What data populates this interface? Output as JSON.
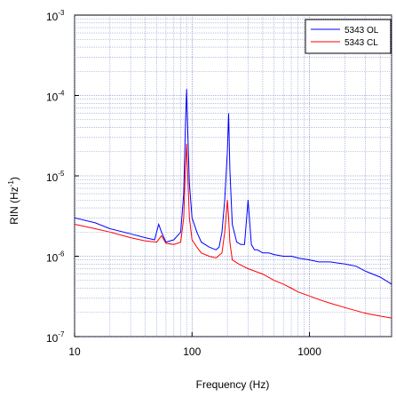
{
  "chart_data": {
    "type": "line",
    "xlabel": "Frequency (Hz)",
    "ylabel_base": "RIN (Hz",
    "ylabel_exp": "-1",
    "ylabel_close": ")",
    "xscale": "log",
    "yscale": "log",
    "xlim": [
      10,
      5000
    ],
    "ylim": [
      1e-07,
      0.001
    ],
    "x_ticks": [
      {
        "value": 10,
        "label": "10"
      },
      {
        "value": 100,
        "label": "100"
      },
      {
        "value": 1000,
        "label": "1000"
      }
    ],
    "y_ticks": [
      {
        "value": 0.001,
        "base": "10",
        "exp": "-3"
      },
      {
        "value": 0.0001,
        "base": "10",
        "exp": "-4"
      },
      {
        "value": 1e-05,
        "base": "10",
        "exp": "-5"
      },
      {
        "value": 1e-06,
        "base": "10",
        "exp": "-6"
      },
      {
        "value": 1e-07,
        "base": "10",
        "exp": "-7"
      }
    ],
    "grid": true,
    "legend_position": "top-right",
    "series": [
      {
        "name": "5343 OL",
        "color": "#0000ff",
        "x": [
          10,
          15,
          20,
          30,
          40,
          48,
          52,
          55,
          60,
          70,
          80,
          85,
          88,
          90,
          92,
          95,
          100,
          110,
          120,
          140,
          160,
          170,
          180,
          190,
          200,
          205,
          210,
          220,
          240,
          260,
          280,
          300,
          320,
          340,
          360,
          400,
          450,
          500,
          600,
          700,
          800,
          1000,
          1200,
          1500,
          2000,
          2500,
          3000,
          4000,
          5000
        ],
        "y": [
          3e-06,
          2.6e-06,
          2.2e-06,
          1.9e-06,
          1.7e-06,
          1.6e-06,
          2.5e-06,
          2e-06,
          1.5e-06,
          1.6e-06,
          2e-06,
          6e-06,
          4.5e-05,
          0.00012,
          3.5e-05,
          8e-06,
          3e-06,
          2e-06,
          1.5e-06,
          1.3e-06,
          1.2e-06,
          1.3e-06,
          2e-06,
          5e-06,
          2e-05,
          6e-05,
          1.2e-05,
          2.5e-06,
          1.5e-06,
          1.4e-06,
          1.4e-06,
          5e-06,
          1.4e-06,
          1.2e-06,
          1.2e-06,
          1.1e-06,
          1.1e-06,
          1.05e-06,
          1e-06,
          1e-06,
          9.5e-07,
          9e-07,
          8.5e-07,
          8.5e-07,
          8e-07,
          7.5e-07,
          6.5e-07,
          5.5e-07,
          4.5e-07
        ]
      },
      {
        "name": "5343 CL",
        "color": "#ff0000",
        "x": [
          10,
          15,
          20,
          30,
          40,
          50,
          55,
          60,
          70,
          80,
          85,
          88,
          90,
          92,
          95,
          100,
          110,
          120,
          140,
          160,
          180,
          190,
          200,
          205,
          210,
          220,
          250,
          300,
          400,
          500,
          600,
          700,
          800,
          1000,
          1200,
          1500,
          2000,
          2500,
          3000,
          4000,
          5000
        ],
        "y": [
          2.5e-06,
          2.2e-06,
          2e-06,
          1.7e-06,
          1.55e-06,
          1.5e-06,
          1.8e-06,
          1.45e-06,
          1.4e-06,
          1.5e-06,
          3e-06,
          1.3e-05,
          2.5e-05,
          1e-05,
          3e-06,
          1.6e-06,
          1.3e-06,
          1.1e-06,
          1e-06,
          9.5e-07,
          1.1e-06,
          2e-06,
          5e-06,
          3e-06,
          1.5e-06,
          9e-07,
          8e-07,
          7e-07,
          6e-07,
          5e-07,
          4.5e-07,
          4e-07,
          3.6e-07,
          3.2e-07,
          2.9e-07,
          2.6e-07,
          2.3e-07,
          2.1e-07,
          1.95e-07,
          1.8e-07,
          1.7e-07
        ]
      }
    ]
  }
}
